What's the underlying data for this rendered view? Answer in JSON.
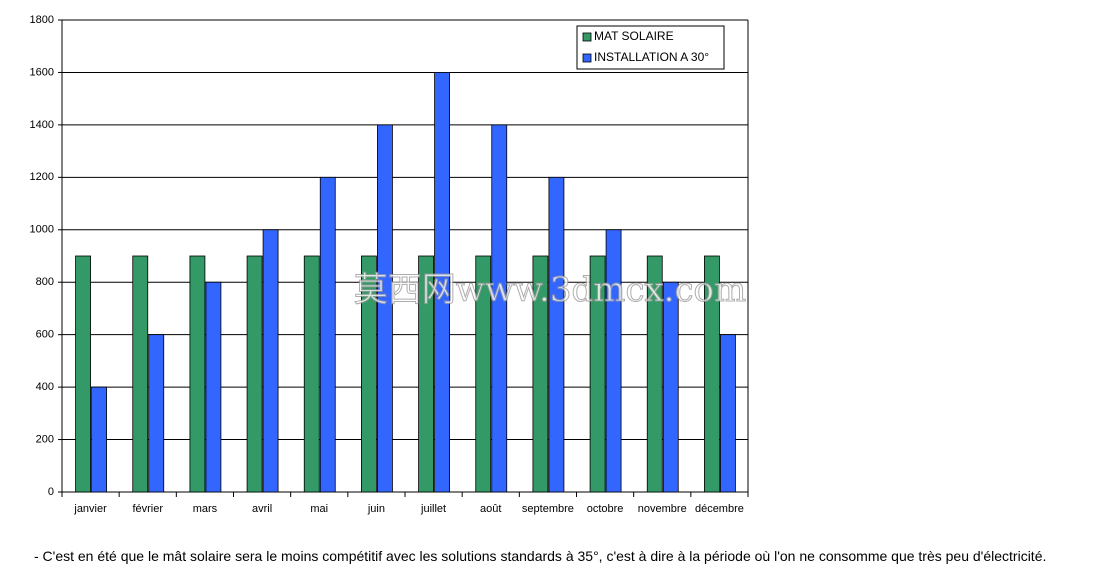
{
  "chart_data": {
    "type": "bar",
    "categories": [
      "janvier",
      "février",
      "mars",
      "avril",
      "mai",
      "juin",
      "juillet",
      "août",
      "septembre",
      "octobre",
      "novembre",
      "décembre"
    ],
    "series": [
      {
        "name": "MAT SOLAIRE",
        "color": "#339966",
        "values": [
          900,
          900,
          900,
          900,
          900,
          900,
          900,
          900,
          900,
          900,
          900,
          900
        ]
      },
      {
        "name": "INSTALLATION A 30°",
        "color": "#3366ff",
        "values": [
          400,
          600,
          800,
          1000,
          1200,
          1400,
          1600,
          1400,
          1200,
          1000,
          800,
          600
        ]
      }
    ],
    "ylim": [
      0,
      1800
    ],
    "yticks": [
      0,
      200,
      400,
      600,
      800,
      1000,
      1200,
      1400,
      1600,
      1800
    ],
    "grid": true,
    "legend": "top-right"
  },
  "watermark": "莫西网www.3dmcx.com",
  "caption": "- C'est en été que le mât solaire sera le moins compétitif avec les solutions standards à 35°, c'est à dire à la période où l'on ne consomme que très peu d'électricité."
}
